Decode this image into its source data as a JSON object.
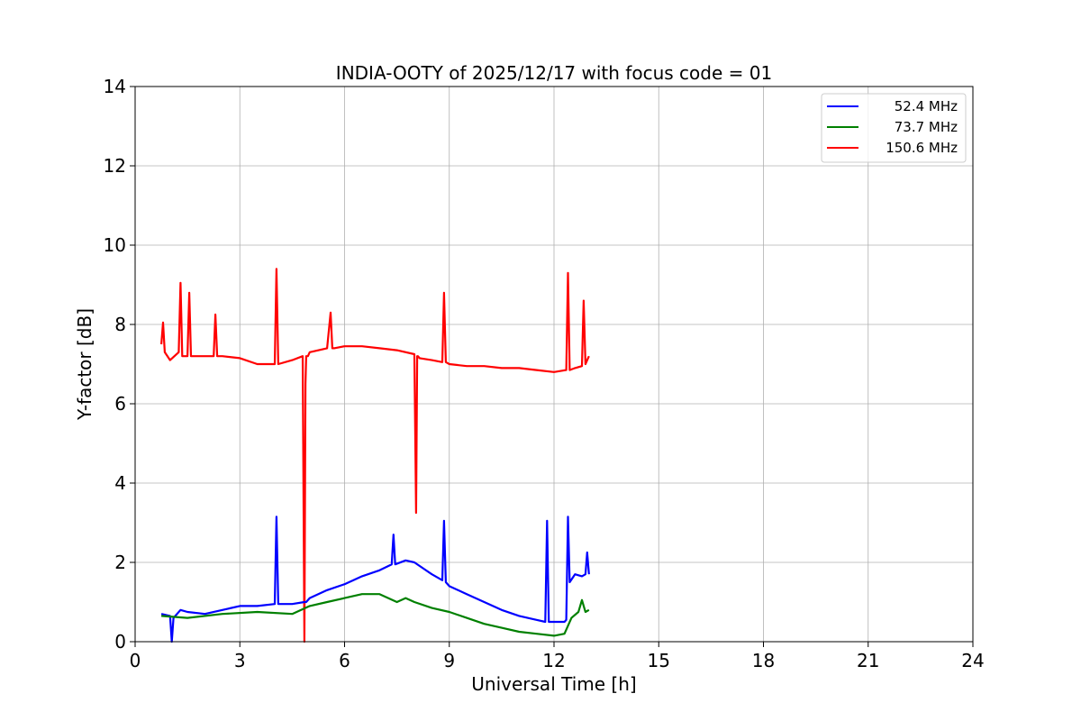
{
  "chart_data": {
    "type": "line",
    "title": "INDIA-OOTY of 2025/12/17 with focus code = 01",
    "xlabel": "Universal Time [h]",
    "ylabel": "Y-factor [dB]",
    "xlim": [
      0,
      24
    ],
    "ylim": [
      0,
      14
    ],
    "xticks": [
      0,
      3,
      6,
      9,
      12,
      15,
      18,
      21,
      24
    ],
    "yticks": [
      0,
      2,
      4,
      6,
      8,
      10,
      12,
      14
    ],
    "grid": true,
    "legend_position": "top-right",
    "series": [
      {
        "name": "52.4 MHz",
        "color": "#0000ff",
        "x": [
          0.75,
          1.0,
          1.05,
          1.1,
          1.3,
          1.5,
          2.0,
          2.5,
          3.0,
          3.5,
          4.0,
          4.05,
          4.1,
          4.5,
          4.85,
          4.9,
          5.0,
          5.5,
          6.0,
          6.5,
          7.0,
          7.35,
          7.4,
          7.45,
          7.75,
          8.0,
          8.5,
          8.8,
          8.85,
          8.9,
          9.0,
          9.5,
          10.0,
          10.5,
          11.0,
          11.5,
          11.75,
          11.8,
          11.85,
          12.0,
          12.3,
          12.35,
          12.4,
          12.45,
          12.6,
          12.8,
          12.9,
          12.95,
          13.0
        ],
        "y": [
          0.7,
          0.65,
          0.0,
          0.6,
          0.8,
          0.75,
          0.7,
          0.8,
          0.9,
          0.9,
          0.95,
          3.15,
          0.95,
          0.95,
          1.0,
          1.0,
          1.1,
          1.3,
          1.45,
          1.65,
          1.8,
          1.95,
          2.7,
          1.95,
          2.05,
          2.0,
          1.7,
          1.55,
          3.05,
          1.5,
          1.4,
          1.2,
          1.0,
          0.8,
          0.65,
          0.55,
          0.5,
          3.05,
          0.5,
          0.5,
          0.5,
          0.55,
          3.15,
          1.5,
          1.7,
          1.65,
          1.7,
          2.25,
          1.7
        ]
      },
      {
        "name": "73.7 MHz",
        "color": "#008000",
        "x": [
          0.75,
          1.5,
          2.5,
          3.5,
          4.5,
          5.0,
          5.5,
          6.0,
          6.5,
          7.0,
          7.5,
          7.75,
          8.0,
          8.5,
          9.0,
          9.5,
          10.0,
          10.5,
          11.0,
          11.5,
          12.0,
          12.3,
          12.5,
          12.7,
          12.8,
          12.9,
          13.0
        ],
        "y": [
          0.65,
          0.6,
          0.7,
          0.75,
          0.7,
          0.9,
          1.0,
          1.1,
          1.2,
          1.2,
          1.0,
          1.1,
          1.0,
          0.85,
          0.75,
          0.6,
          0.45,
          0.35,
          0.25,
          0.2,
          0.15,
          0.2,
          0.6,
          0.75,
          1.05,
          0.75,
          0.8
        ]
      },
      {
        "name": "150.6 MHz",
        "color": "#ff0000",
        "x": [
          0.75,
          0.8,
          0.85,
          1.0,
          1.25,
          1.3,
          1.35,
          1.5,
          1.55,
          1.6,
          2.0,
          2.25,
          2.3,
          2.35,
          2.5,
          3.0,
          3.5,
          4.0,
          4.05,
          4.1,
          4.5,
          4.8,
          4.85,
          4.88,
          4.9,
          4.95,
          5.0,
          5.5,
          5.6,
          5.65,
          5.7,
          6.0,
          6.5,
          7.0,
          7.5,
          8.0,
          8.05,
          8.08,
          8.1,
          8.15,
          8.5,
          8.8,
          8.85,
          8.9,
          9.0,
          9.5,
          10.0,
          10.5,
          11.0,
          11.5,
          12.0,
          12.35,
          12.4,
          12.45,
          12.6,
          12.8,
          12.85,
          12.9,
          13.0
        ],
        "y": [
          7.5,
          8.05,
          7.3,
          7.1,
          7.3,
          9.05,
          7.2,
          7.2,
          8.8,
          7.2,
          7.2,
          7.2,
          8.25,
          7.2,
          7.2,
          7.15,
          7.0,
          7.0,
          9.4,
          7.0,
          7.1,
          7.2,
          0.0,
          6.5,
          7.2,
          7.2,
          7.3,
          7.4,
          8.3,
          7.4,
          7.4,
          7.45,
          7.45,
          7.4,
          7.35,
          7.25,
          3.25,
          7.2,
          7.2,
          7.15,
          7.1,
          7.05,
          8.8,
          7.05,
          7.0,
          6.95,
          6.95,
          6.9,
          6.9,
          6.85,
          6.8,
          6.85,
          9.3,
          6.85,
          6.9,
          6.95,
          8.6,
          7.0,
          7.2
        ]
      }
    ]
  }
}
